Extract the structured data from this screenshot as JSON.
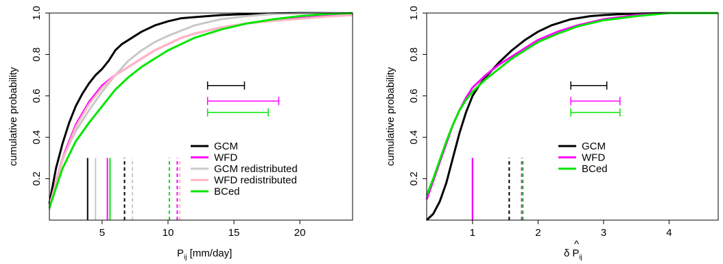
{
  "chart_data": [
    {
      "type": "line",
      "ylabel": "cumulative probability",
      "xlabel_main": "P",
      "xlabel_sub": "ij",
      "xlabel_rest": " [mm/day]",
      "xlim": [
        1,
        24
      ],
      "ylim": [
        0,
        1
      ],
      "x_ticks": [
        "5",
        "10",
        "15",
        "20"
      ],
      "y_ticks": [
        "0.2",
        "0.4",
        "0.6",
        "0.8",
        "1.0"
      ],
      "legend_position": "lower-right",
      "series": [
        {
          "name": "GCM",
          "color": "#000000",
          "x": [
            1.0,
            1.5,
            2.0,
            2.5,
            3.0,
            3.5,
            4.0,
            4.5,
            5.0,
            5.5,
            6.0,
            6.5,
            7.0,
            7.5,
            8.0,
            9.0,
            10.0,
            11.0,
            12.0,
            13.0,
            14.0,
            16.0,
            18.0,
            20.0,
            24.0
          ],
          "y": [
            0.08,
            0.25,
            0.37,
            0.47,
            0.55,
            0.61,
            0.66,
            0.7,
            0.73,
            0.77,
            0.82,
            0.85,
            0.87,
            0.89,
            0.91,
            0.94,
            0.96,
            0.975,
            0.98,
            0.985,
            0.99,
            0.995,
            0.998,
            1.0,
            1.0
          ]
        },
        {
          "name": "WFD",
          "color": "#ff00ff",
          "x": [
            1.0,
            2.0,
            3.0,
            4.0,
            5.0,
            6.0,
            7.0,
            8.0,
            9.0,
            10.0,
            11.0,
            12.0,
            13.0,
            14.0,
            15.0,
            16.0,
            18.0,
            20.0,
            22.0,
            24.0
          ],
          "y": [
            0.07,
            0.3,
            0.46,
            0.57,
            0.65,
            0.7,
            0.74,
            0.78,
            0.82,
            0.85,
            0.88,
            0.9,
            0.915,
            0.93,
            0.94,
            0.95,
            0.965,
            0.975,
            0.985,
            0.99
          ]
        },
        {
          "name": "GCM redistributed",
          "color": "#c8c8c8",
          "x": [
            1.0,
            1.5,
            2.0,
            3.0,
            4.0,
            5.0,
            6.0,
            7.0,
            8.0,
            9.0,
            10.0,
            12.0,
            14.0,
            16.0,
            18.0,
            20.0,
            24.0
          ],
          "y": [
            0.05,
            0.18,
            0.3,
            0.43,
            0.53,
            0.62,
            0.7,
            0.77,
            0.82,
            0.86,
            0.89,
            0.94,
            0.97,
            0.985,
            0.995,
            0.998,
            1.0
          ]
        },
        {
          "name": "WFD redistributed",
          "color": "#ffb6c1",
          "x": [
            1.0,
            2.0,
            3.0,
            4.0,
            5.0,
            6.0,
            7.0,
            8.0,
            9.0,
            10.0,
            11.0,
            12.0,
            13.0,
            14.0,
            15.0,
            16.0,
            18.0,
            20.0,
            22.0,
            24.0
          ],
          "y": [
            0.07,
            0.29,
            0.45,
            0.56,
            0.64,
            0.7,
            0.74,
            0.78,
            0.82,
            0.85,
            0.88,
            0.9,
            0.915,
            0.93,
            0.94,
            0.95,
            0.962,
            0.972,
            0.982,
            0.99
          ]
        },
        {
          "name": "BCed",
          "color": "#00e600",
          "x": [
            1.0,
            2.0,
            3.0,
            4.0,
            5.0,
            6.0,
            7.0,
            8.0,
            9.0,
            10.0,
            11.0,
            12.0,
            13.0,
            14.0,
            16.0,
            18.0,
            20.0,
            22.0,
            24.0
          ],
          "y": [
            0.06,
            0.25,
            0.38,
            0.47,
            0.55,
            0.63,
            0.69,
            0.74,
            0.78,
            0.82,
            0.85,
            0.88,
            0.9,
            0.92,
            0.95,
            0.97,
            0.985,
            0.995,
            1.0
          ]
        }
      ],
      "vlines": [
        {
          "x": 3.9,
          "color": "#000000",
          "style": "solid"
        },
        {
          "x": 5.4,
          "color": "#ff00ff",
          "style": "solid"
        },
        {
          "x": 4.5,
          "color": "#c8c8c8",
          "style": "solid"
        },
        {
          "x": 5.6,
          "color": "#00e600",
          "style": "solid"
        },
        {
          "x": 6.7,
          "color": "#000000",
          "style": "dashed"
        },
        {
          "x": 7.3,
          "color": "#c8c8c8",
          "style": "dashed"
        },
        {
          "x": 10.1,
          "color": "#00e600",
          "style": "dashed"
        },
        {
          "x": 10.7,
          "color": "#ff00ff",
          "style": "dashed"
        },
        {
          "x": 10.9,
          "color": "#ffb6c1",
          "style": "dashed"
        }
      ],
      "intervals": [
        {
          "x0": 13.0,
          "x1": 15.8,
          "y": 0.65,
          "color": "#000000"
        },
        {
          "x0": 13.0,
          "x1": 18.4,
          "y": 0.575,
          "color": "#ff00ff"
        },
        {
          "x0": 13.0,
          "x1": 17.6,
          "y": 0.52,
          "color": "#00e600"
        }
      ]
    },
    {
      "type": "line",
      "ylabel": "cumulative probability",
      "xlabel_main": "δ",
      "xlabel_p": "P",
      "xlabel_sub": "ij",
      "xlim": [
        0.3,
        4.75
      ],
      "ylim": [
        0,
        1
      ],
      "x_ticks": [
        "1",
        "2",
        "3",
        "4"
      ],
      "y_ticks": [
        "0.2",
        "0.4",
        "0.6",
        "0.8",
        "1.0"
      ],
      "legend_position": "lower-right",
      "series": [
        {
          "name": "GCM",
          "color": "#000000",
          "x": [
            0.3,
            0.4,
            0.5,
            0.6,
            0.7,
            0.8,
            0.9,
            1.0,
            1.1,
            1.2,
            1.4,
            1.6,
            1.8,
            2.0,
            2.2,
            2.5,
            2.8,
            3.0,
            3.3,
            3.6,
            4.0,
            4.75
          ],
          "y": [
            0.0,
            0.03,
            0.09,
            0.18,
            0.3,
            0.42,
            0.52,
            0.6,
            0.65,
            0.69,
            0.76,
            0.82,
            0.87,
            0.91,
            0.94,
            0.97,
            0.985,
            0.99,
            0.995,
            0.998,
            1.0,
            1.0
          ]
        },
        {
          "name": "WFD",
          "color": "#ff00ff",
          "x": [
            0.3,
            0.4,
            0.5,
            0.6,
            0.7,
            0.8,
            0.9,
            1.0,
            1.1,
            1.2,
            1.4,
            1.6,
            1.8,
            2.0,
            2.3,
            2.6,
            3.0,
            3.5,
            4.0,
            4.75
          ],
          "y": [
            0.1,
            0.19,
            0.28,
            0.37,
            0.46,
            0.53,
            0.59,
            0.64,
            0.67,
            0.7,
            0.75,
            0.79,
            0.83,
            0.87,
            0.91,
            0.94,
            0.97,
            0.99,
            1.0,
            1.0
          ]
        },
        {
          "name": "BCed",
          "color": "#00e600",
          "x": [
            0.3,
            0.4,
            0.5,
            0.6,
            0.7,
            0.8,
            0.9,
            1.0,
            1.1,
            1.2,
            1.4,
            1.6,
            1.8,
            2.0,
            2.3,
            2.6,
            3.0,
            3.5,
            4.0,
            4.75
          ],
          "y": [
            0.12,
            0.2,
            0.29,
            0.38,
            0.46,
            0.53,
            0.58,
            0.62,
            0.65,
            0.68,
            0.73,
            0.78,
            0.82,
            0.86,
            0.9,
            0.935,
            0.965,
            0.985,
            1.0,
            1.0
          ]
        }
      ],
      "vlines": [
        {
          "x": 1.0,
          "color": "#000000",
          "style": "solid"
        },
        {
          "x": 1.0,
          "color": "#ff00ff",
          "style": "solid"
        },
        {
          "x": 1.56,
          "color": "#000000",
          "style": "dashed"
        },
        {
          "x": 1.75,
          "color": "#ff00ff",
          "style": "dashed"
        },
        {
          "x": 1.77,
          "color": "#00e600",
          "style": "dashed"
        }
      ],
      "intervals": [
        {
          "x0": 2.5,
          "x1": 3.05,
          "y": 0.65,
          "color": "#000000"
        },
        {
          "x0": 2.5,
          "x1": 3.25,
          "y": 0.575,
          "color": "#ff00ff"
        },
        {
          "x0": 2.5,
          "x1": 3.25,
          "y": 0.52,
          "color": "#00e600"
        }
      ]
    }
  ]
}
